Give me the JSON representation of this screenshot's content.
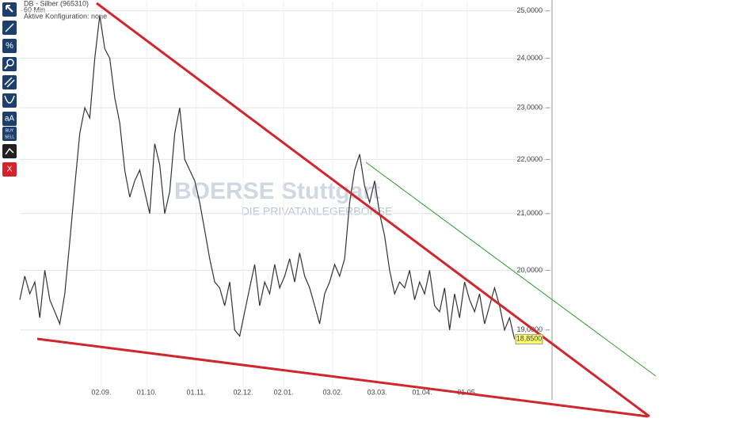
{
  "toolbar": {
    "labels": [
      "%",
      "aA",
      "BUY",
      "SELL",
      "X"
    ]
  },
  "chart_data": {
    "type": "line",
    "title": "DB - Silber (965310)",
    "subtitle": "60 Min",
    "annotation": "Aktive Konfiguration: none",
    "watermark": [
      "BOERSE Stuttgart",
      "DIE PRIVATANLEGERBÖRSE"
    ],
    "last_label": "18,8500",
    "x": [
      0,
      1,
      2,
      3,
      4,
      5,
      6,
      7,
      8,
      9,
      10,
      11,
      12,
      13,
      14,
      15,
      16,
      17,
      18,
      19,
      20,
      21,
      22,
      23,
      24,
      25,
      26,
      27,
      28,
      29,
      30,
      31,
      32,
      33,
      34,
      35,
      36,
      37,
      38,
      39,
      40,
      41,
      42,
      43,
      44,
      45,
      46,
      47,
      48,
      49,
      50,
      51,
      52,
      53,
      54,
      55,
      56,
      57,
      58,
      59,
      60,
      61,
      62,
      63,
      64,
      65,
      66,
      67,
      68,
      69,
      70,
      71,
      72,
      73,
      74,
      75,
      76,
      77,
      78,
      79,
      80,
      81,
      82,
      83,
      84,
      85,
      86,
      87,
      88,
      89,
      90,
      91,
      92,
      93,
      94,
      95,
      96,
      97,
      98,
      99
    ],
    "series": [
      {
        "color": "#333333",
        "values": [
          19.5,
          19.9,
          19.6,
          19.8,
          19.2,
          20.0,
          19.5,
          19.3,
          19.1,
          19.6,
          20.5,
          21.5,
          22.5,
          23.0,
          22.8,
          24.0,
          24.9,
          24.2,
          24.0,
          23.2,
          22.7,
          21.8,
          21.3,
          21.6,
          21.8,
          21.4,
          21.0,
          22.3,
          21.9,
          21.0,
          21.4,
          22.5,
          23.0,
          22.0,
          21.8,
          21.6,
          21.2,
          20.7,
          20.2,
          19.8,
          19.7,
          19.4,
          19.8,
          19.0,
          18.9,
          19.3,
          19.7,
          20.1,
          19.4,
          19.8,
          19.6,
          20.1,
          19.7,
          19.9,
          20.2,
          19.8,
          20.3,
          19.9,
          19.7,
          19.4,
          19.1,
          19.6,
          19.8,
          20.1,
          19.9,
          20.2,
          21.2,
          21.8,
          22.1,
          21.5,
          21.2,
          21.6,
          21.0,
          20.6,
          20.0,
          19.6,
          19.8,
          19.7,
          20.0,
          19.5,
          19.8,
          19.6,
          20.0,
          19.4,
          19.3,
          19.7,
          19.0,
          19.6,
          19.2,
          19.8,
          19.5,
          19.3,
          19.6,
          19.1,
          19.4,
          19.7,
          19.4,
          19.0,
          19.2,
          18.85
        ]
      }
    ],
    "xlim": [
      0,
      106.5
    ],
    "xticks": [
      {
        "value": 16.3,
        "label": "02.09."
      },
      {
        "value": 25.4,
        "label": "01.10."
      },
      {
        "value": 35.3,
        "label": "01.11."
      },
      {
        "value": 44.7,
        "label": "02.12."
      },
      {
        "value": 52.8,
        "label": "02.01."
      },
      {
        "value": 62.6,
        "label": "03.02."
      },
      {
        "value": 71.5,
        "label": "03.03."
      },
      {
        "value": 80.5,
        "label": "01.04."
      },
      {
        "value": 89.5,
        "label": "01.05."
      }
    ],
    "ylim": [
      18.1,
      25.2
    ],
    "log_y": true,
    "grid": true,
    "yticks": [
      {
        "value": 19,
        "label": "19,0000"
      },
      {
        "value": 20,
        "label": "20,0000"
      },
      {
        "value": 21,
        "label": "21,0000"
      },
      {
        "value": 22,
        "label": "22,0000"
      },
      {
        "value": 23,
        "label": "23,0000"
      },
      {
        "value": 24,
        "label": "24,0000"
      },
      {
        "value": 25,
        "label": "25,0000"
      }
    ]
  }
}
